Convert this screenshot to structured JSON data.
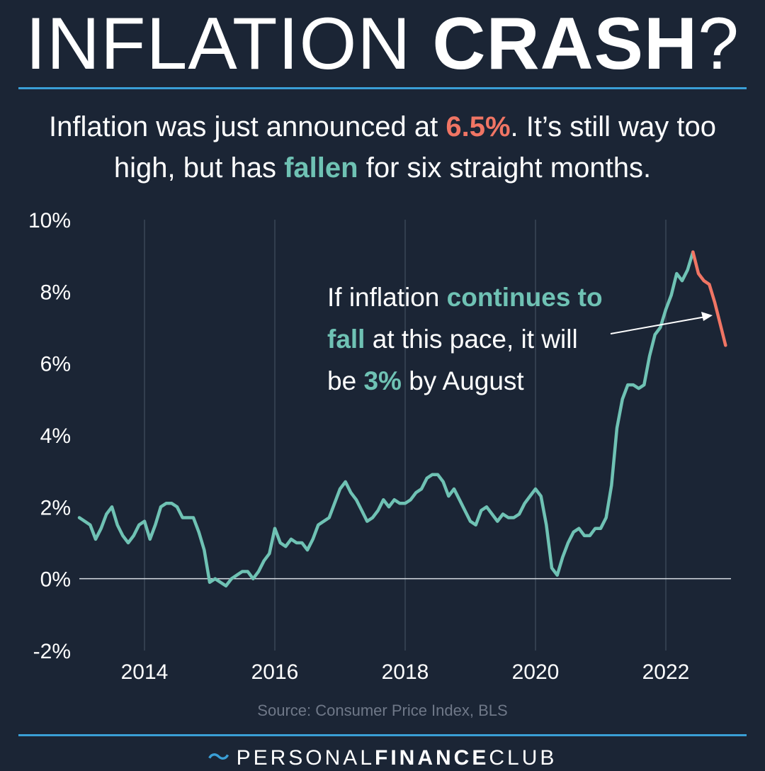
{
  "title": {
    "light": "INFLATION ",
    "bold": "CRASH",
    "end": "?"
  },
  "subtitle": {
    "p1": "Inflation was just announced at ",
    "red": "6.5%",
    "p2": ". It’s still way too high, but has ",
    "teal": "fallen",
    "p3": " for six straight months."
  },
  "annotation": {
    "p1": "If inflation ",
    "teal1": "continues to fall",
    "p2": " at this pace, it will be ",
    "teal2": "3%",
    "p3": " by August"
  },
  "source": "Source: Consumer Price Index, BLS",
  "brand": {
    "logo": "〜",
    "thin": "PERSONAL",
    "bold": "FINANCE",
    "thin2": "CLUB"
  },
  "colors": {
    "background": "#1b2535",
    "accent": "#3a9fd6",
    "teal": "#6fc2b4",
    "red": "#f07564"
  },
  "chart_data": {
    "type": "line",
    "xlabel": "",
    "ylabel": "",
    "xlim": [
      2013.0,
      2023.0
    ],
    "ylim": [
      -2,
      10
    ],
    "x_ticks": [
      2014,
      2016,
      2018,
      2020,
      2022
    ],
    "x_tick_labels": [
      "2014",
      "2016",
      "2018",
      "2020",
      "2022"
    ],
    "y_ticks": [
      -2,
      0,
      2,
      4,
      6,
      8,
      10
    ],
    "y_tick_labels": [
      "-2%",
      "0%",
      "2%",
      "4%",
      "6%",
      "8%",
      "10%"
    ],
    "grid": "vertical lines at year ticks; horizontal line at 0%",
    "x_start": "2013-01",
    "frequency": "monthly",
    "series": [
      {
        "color": "#6fc2b4",
        "values": [
          1.7,
          1.6,
          1.5,
          1.1,
          1.4,
          1.8,
          2.0,
          1.5,
          1.2,
          1.0,
          1.2,
          1.5,
          1.6,
          1.1,
          1.5,
          2.0,
          2.1,
          2.1,
          2.0,
          1.7,
          1.7,
          1.7,
          1.3,
          0.8,
          -0.1,
          0.0,
          -0.1,
          -0.2,
          0.0,
          0.1,
          0.2,
          0.2,
          0.0,
          0.2,
          0.5,
          0.7,
          1.4,
          1.0,
          0.9,
          1.1,
          1.0,
          1.0,
          0.8,
          1.1,
          1.5,
          1.6,
          1.7,
          2.1,
          2.5,
          2.7,
          2.4,
          2.2,
          1.9,
          1.6,
          1.7,
          1.9,
          2.2,
          2.0,
          2.2,
          2.1,
          2.1,
          2.2,
          2.4,
          2.5,
          2.8,
          2.9,
          2.9,
          2.7,
          2.3,
          2.5,
          2.2,
          1.9,
          1.6,
          1.5,
          1.9,
          2.0,
          1.8,
          1.6,
          1.8,
          1.7,
          1.7,
          1.8,
          2.1,
          2.3,
          2.5,
          2.3,
          1.5,
          0.3,
          0.1,
          0.6,
          1.0,
          1.3,
          1.4,
          1.2,
          1.2,
          1.4,
          1.4,
          1.7,
          2.6,
          4.2,
          5.0,
          5.4,
          5.4,
          5.3,
          5.4,
          6.2,
          6.8,
          7.0,
          7.5,
          7.9,
          8.5,
          8.3,
          8.6,
          9.1
        ]
      },
      {
        "color": "#f07564",
        "values": [
          9.1,
          8.5,
          8.3,
          8.2,
          7.7,
          7.1,
          6.5
        ]
      }
    ]
  }
}
